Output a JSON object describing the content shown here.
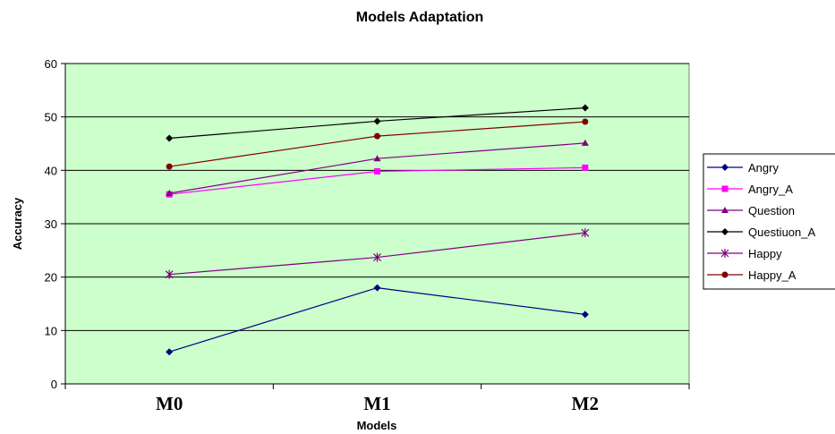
{
  "chart_data": {
    "type": "line",
    "title": "Models Adaptation",
    "xlabel": "Models",
    "ylabel": "Accuracy",
    "categories": [
      "M0",
      "M1",
      "M2"
    ],
    "ylim": [
      0,
      60
    ],
    "yticks": [
      0,
      10,
      20,
      30,
      40,
      50,
      60
    ],
    "grid": true,
    "legend_position": "right",
    "plot_background": "#ccffcc",
    "series": [
      {
        "name": "Angry",
        "values": [
          6,
          18,
          13
        ],
        "color": "#000080",
        "marker": "diamond"
      },
      {
        "name": "Angry_A",
        "values": [
          35.5,
          39.8,
          40.5
        ],
        "color": "#ff00ff",
        "marker": "square"
      },
      {
        "name": "Question",
        "values": [
          35.7,
          42.2,
          45.1
        ],
        "color": "#800080",
        "marker": "triangle"
      },
      {
        "name": "Questiuon_A",
        "values": [
          46,
          49.2,
          51.7
        ],
        "color": "#000000",
        "marker": "diamond"
      },
      {
        "name": "Happy",
        "values": [
          20.5,
          23.7,
          28.3
        ],
        "color": "#800080",
        "marker": "star"
      },
      {
        "name": "Happy_A",
        "values": [
          40.7,
          46.4,
          49.1
        ],
        "color": "#800000",
        "marker": "circle"
      }
    ]
  }
}
